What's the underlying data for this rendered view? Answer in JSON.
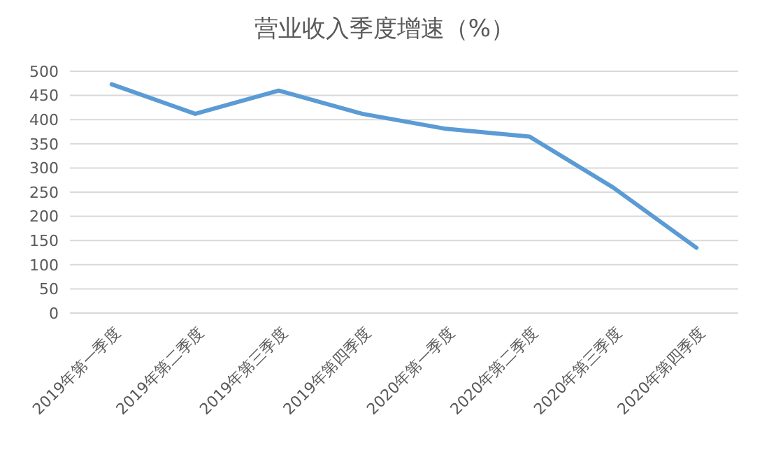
{
  "chart_data": {
    "type": "line",
    "title": "营业收入季度增速（%）",
    "categories": [
      "2019年第一季度",
      "2019年第二季度",
      "2019年第三季度",
      "2019年第四季度",
      "2020年第一季度",
      "2020年第二季度",
      "2020年第三季度",
      "2020年第四季度"
    ],
    "series": [
      {
        "color": "#5b9bd5",
        "values": [
          473,
          412,
          460,
          412,
          381,
          365,
          260,
          135
        ]
      }
    ],
    "ylim": [
      0,
      500
    ],
    "yticks": [
      0,
      50,
      100,
      150,
      200,
      250,
      300,
      350,
      400,
      450,
      500
    ],
    "grid": "y",
    "marker": "none",
    "line_style": "solid"
  }
}
